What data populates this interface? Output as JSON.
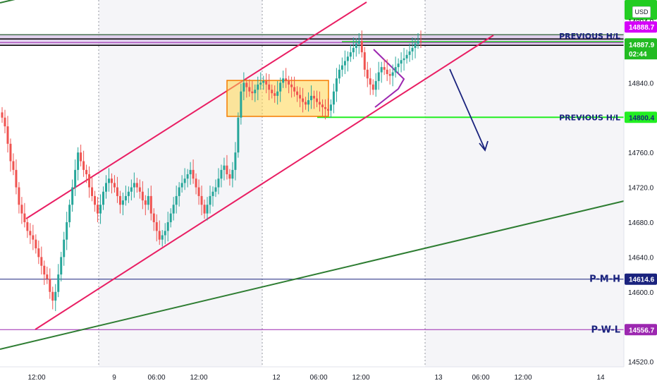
{
  "chart_data": {
    "type": "candlestick",
    "currency": "USD",
    "y_ticks": [
      14520,
      14560,
      14600,
      14640,
      14680,
      14720,
      14760,
      14800,
      14840
    ],
    "ylim": [
      14514,
      14935
    ],
    "x_ticks": [
      "12:00",
      "9",
      "06:00",
      "12:00",
      "12",
      "06:00",
      "12:00",
      "13",
      "06:00",
      "12:00",
      "14"
    ],
    "current_price": "14887.9",
    "countdown": "02:44",
    "series": [
      {
        "values": [
          14800,
          14790,
          14770,
          14750,
          14740,
          14720,
          14700,
          14690,
          14680,
          14670,
          14665,
          14660,
          14650,
          14640,
          14630,
          14620,
          14615,
          14600,
          14590,
          14600,
          14620,
          14640,
          14660,
          14680,
          14700,
          14720,
          14740,
          14760,
          14750,
          14740,
          14735,
          14720,
          14710,
          14700,
          14690,
          14700,
          14715,
          14725,
          14730,
          14725,
          14720,
          14710,
          14700,
          14705,
          14710,
          14715,
          14720,
          14725,
          14720,
          14715,
          14705,
          14700,
          14710,
          14690,
          14680,
          14670,
          14660,
          14665,
          14670,
          14680,
          14690,
          14700,
          14710,
          14720,
          14725,
          14730,
          14735,
          14740,
          14730,
          14720,
          14710,
          14700,
          14690,
          14700,
          14710,
          14715,
          14720,
          14730,
          14740,
          14745,
          14735,
          14730,
          14740,
          14760,
          14800,
          14830,
          14840,
          14835,
          14830,
          14828,
          14832,
          14838,
          14840,
          14842,
          14838,
          14832,
          14828,
          14825,
          14830,
          14840,
          14845,
          14842,
          14838,
          14835,
          14830,
          14826,
          14822,
          14818,
          14815,
          14820,
          14825,
          14822,
          14818,
          14815,
          14812,
          14810,
          14808,
          14815,
          14830,
          14845,
          14855,
          14860,
          14865,
          14870,
          14875,
          14880,
          14885,
          14888,
          14875,
          14855,
          14845,
          14838,
          14832,
          14842,
          14852,
          14858,
          14855,
          14850,
          14848,
          14852,
          14858,
          14862,
          14866,
          14868,
          14872,
          14876,
          14880,
          14885,
          14888,
          14887.9
        ]
      }
    ],
    "levels": [
      {
        "label": "PREVIOUS H/L",
        "value": "14888.7",
        "color": "#d500f9"
      },
      {
        "label": "PREVIOUS H/L",
        "value": "14800.4",
        "color": "#22cc22"
      },
      {
        "label": "P-M-H",
        "value": "14614.6",
        "color": "#1a237e"
      },
      {
        "label": "P-W-L",
        "value": "14556.7",
        "color": "#9c27b0"
      }
    ],
    "top_badges": [
      "14894.0"
    ]
  }
}
